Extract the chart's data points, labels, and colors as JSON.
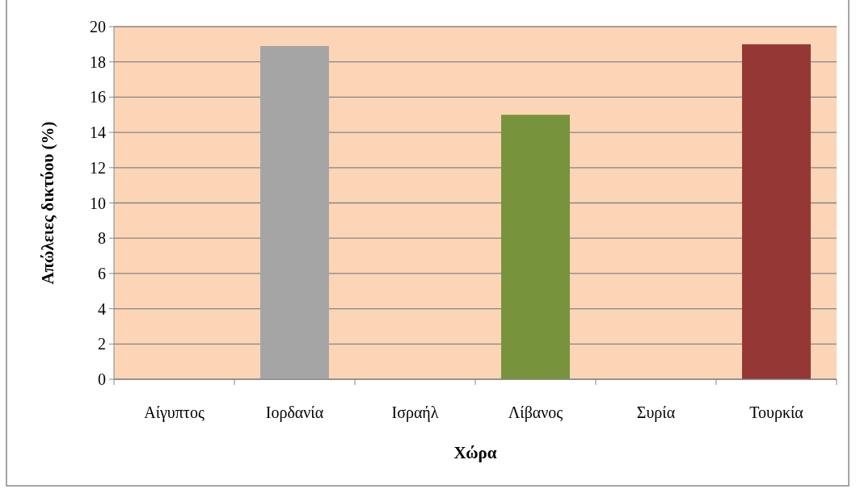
{
  "chart_data": {
    "type": "bar",
    "xlabel": "Χώρα",
    "ylabel": "Απώλειες δικτύου (%)",
    "categories": [
      "Αίγυπτος",
      "Ιορδανία",
      "Ισραήλ",
      "Λίβανος",
      "Συρία",
      "Τουρκία"
    ],
    "values": [
      null,
      18.9,
      null,
      15,
      null,
      19
    ],
    "colors": [
      null,
      "#a5a5a5",
      null,
      "#77933c",
      null,
      "#953735"
    ],
    "ylim": [
      0,
      20
    ],
    "yticks": [
      0,
      2,
      4,
      6,
      8,
      10,
      12,
      14,
      16,
      18,
      20
    ],
    "grid": "y"
  }
}
